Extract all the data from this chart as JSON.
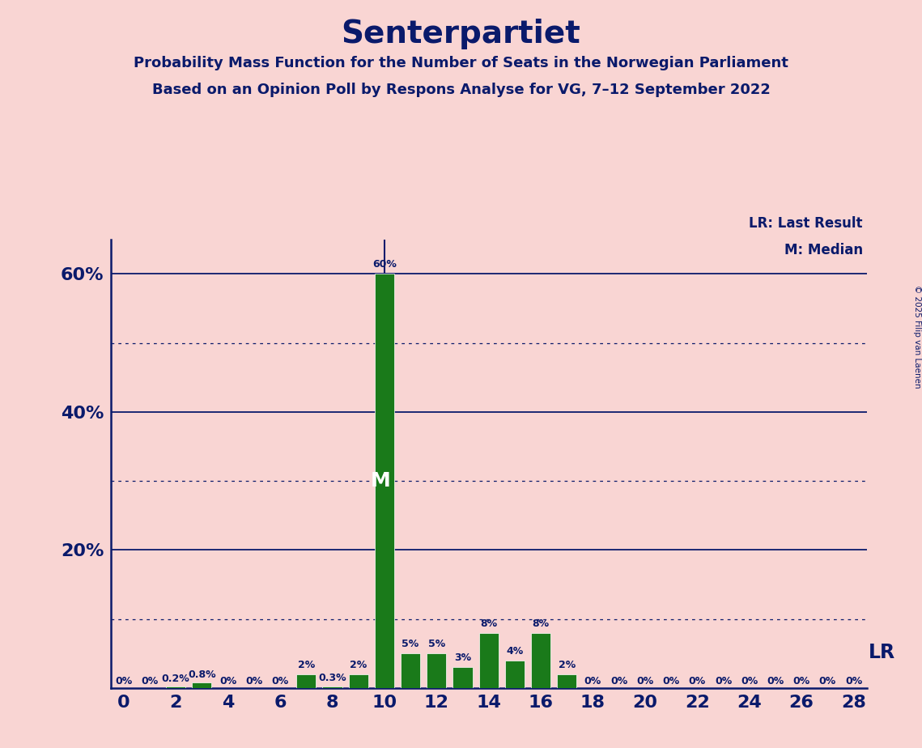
{
  "title": "Senterpartiet",
  "subtitle1": "Probability Mass Function for the Number of Seats in the Norwegian Parliament",
  "subtitle2": "Based on an Opinion Poll by Respons Analyse for VG, 7–12 September 2022",
  "copyright": "© 2025 Filip van Laenen",
  "background_color": "#f9d5d3",
  "bar_color": "#1a7a1a",
  "title_color": "#0a1a6b",
  "axis_color": "#0a1a6b",
  "seats": [
    0,
    1,
    2,
    3,
    4,
    5,
    6,
    7,
    8,
    9,
    10,
    11,
    12,
    13,
    14,
    15,
    16,
    17,
    18,
    19,
    20,
    21,
    22,
    23,
    24,
    25,
    26,
    27,
    28
  ],
  "probabilities": [
    0.0,
    0.0,
    0.2,
    0.8,
    0.0,
    0.0,
    0.0,
    2.0,
    0.3,
    2.0,
    60.0,
    5.0,
    5.0,
    3.0,
    8.0,
    4.0,
    8.0,
    2.0,
    0.0,
    0.0,
    0.0,
    0.0,
    0.0,
    0.0,
    0.0,
    0.0,
    0.0,
    0.0,
    0.0
  ],
  "labels": [
    "0%",
    "0%",
    "0.2%",
    "0.8%",
    "0%",
    "0%",
    "0%",
    "2%",
    "0.3%",
    "2%",
    "60%",
    "5%",
    "5%",
    "3%",
    "8%",
    "4%",
    "8%",
    "2%",
    "0%",
    "0%",
    "0%",
    "0%",
    "0%",
    "0%",
    "0%",
    "0%",
    "0%",
    "0%",
    "0%"
  ],
  "median": 10,
  "last_result": 10,
  "xlim": [
    -0.5,
    28.5
  ],
  "ylim": [
    0,
    65
  ],
  "yticks": [
    20,
    40,
    60
  ],
  "ytick_labels": [
    "20%",
    "40%",
    "60%"
  ],
  "xticks": [
    0,
    2,
    4,
    6,
    8,
    10,
    12,
    14,
    16,
    18,
    20,
    22,
    24,
    26,
    28
  ],
  "solid_gridlines": [
    20,
    40,
    60
  ],
  "dotted_gridlines": [
    10,
    30,
    50
  ],
  "lr_label": "LR",
  "lr_median_label": "LR: Last Result",
  "m_median_label": "M: Median"
}
